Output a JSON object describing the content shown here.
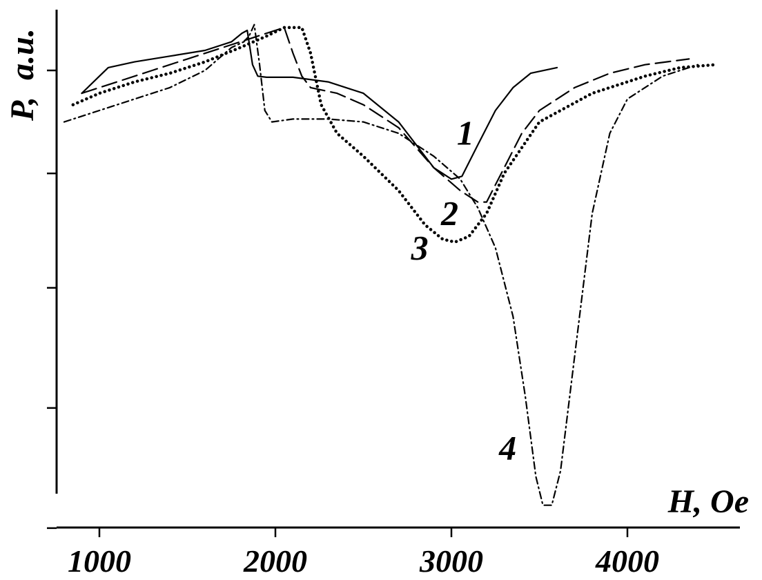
{
  "chart_data": {
    "type": "line",
    "title": "",
    "xlabel": "H, Oe",
    "ylabel": "P,  a.u.",
    "xlim": [
      800,
      4600
    ],
    "ylim": [
      0,
      100
    ],
    "x_ticks": [
      1000,
      2000,
      3000,
      4000
    ],
    "x_tick_labels": [
      "1000",
      "2000",
      "3000",
      "4000"
    ],
    "y_ticks": [
      15,
      36,
      57,
      77,
      95
    ],
    "y_tick_labels": [],
    "grid": false,
    "legend": "none",
    "series": [
      {
        "name": "1",
        "style": "solid",
        "points": [
          [
            900,
            91
          ],
          [
            1000,
            94
          ],
          [
            1050,
            95.5
          ],
          [
            1200,
            96.5
          ],
          [
            1400,
            97.5
          ],
          [
            1600,
            98.5
          ],
          [
            1750,
            100
          ],
          [
            1810,
            101.5
          ],
          [
            1840,
            102
          ],
          [
            1870,
            96
          ],
          [
            1900,
            94
          ],
          [
            1950,
            93.8
          ],
          [
            2100,
            93.8
          ],
          [
            2300,
            93
          ],
          [
            2500,
            91
          ],
          [
            2700,
            86
          ],
          [
            2900,
            78
          ],
          [
            3000,
            76
          ],
          [
            3060,
            76.5
          ],
          [
            3150,
            82
          ],
          [
            3250,
            88
          ],
          [
            3350,
            92
          ],
          [
            3450,
            94.5
          ],
          [
            3600,
            95.5
          ]
        ]
      },
      {
        "name": "2",
        "style": "dashed",
        "points": [
          [
            900,
            91
          ],
          [
            1100,
            93
          ],
          [
            1300,
            95
          ],
          [
            1500,
            97
          ],
          [
            1700,
            99
          ],
          [
            1900,
            101
          ],
          [
            2050,
            102.5
          ],
          [
            2100,
            98
          ],
          [
            2150,
            94
          ],
          [
            2200,
            92
          ],
          [
            2350,
            91
          ],
          [
            2500,
            89
          ],
          [
            2700,
            85
          ],
          [
            2900,
            78
          ],
          [
            3050,
            74
          ],
          [
            3100,
            73
          ],
          [
            3150,
            72
          ],
          [
            3200,
            72
          ],
          [
            3300,
            78
          ],
          [
            3400,
            84
          ],
          [
            3500,
            88
          ],
          [
            3700,
            92
          ],
          [
            3900,
            94.5
          ],
          [
            4100,
            96
          ],
          [
            4350,
            97
          ]
        ]
      },
      {
        "name": "3",
        "style": "dotted",
        "points": [
          [
            850,
            89
          ],
          [
            1000,
            91
          ],
          [
            1200,
            93
          ],
          [
            1400,
            94.5
          ],
          [
            1600,
            96.5
          ],
          [
            1800,
            99
          ],
          [
            1950,
            101
          ],
          [
            2050,
            102.5
          ],
          [
            2150,
            102.5
          ],
          [
            2200,
            98
          ],
          [
            2260,
            89
          ],
          [
            2350,
            84
          ],
          [
            2500,
            80
          ],
          [
            2700,
            74
          ],
          [
            2850,
            68
          ],
          [
            2950,
            65.5
          ],
          [
            3020,
            65
          ],
          [
            3100,
            66
          ],
          [
            3200,
            70
          ],
          [
            3300,
            77
          ],
          [
            3500,
            86
          ],
          [
            3800,
            91
          ],
          [
            4100,
            94
          ],
          [
            4300,
            95.5
          ],
          [
            4500,
            96
          ]
        ]
      },
      {
        "name": "4",
        "style": "dashdot",
        "points": [
          [
            800,
            86
          ],
          [
            1000,
            88
          ],
          [
            1200,
            90
          ],
          [
            1400,
            92
          ],
          [
            1600,
            95
          ],
          [
            1750,
            99
          ],
          [
            1820,
            100
          ],
          [
            1850,
            101
          ],
          [
            1880,
            103
          ],
          [
            1910,
            96
          ],
          [
            1940,
            88
          ],
          [
            1980,
            86
          ],
          [
            2100,
            86.5
          ],
          [
            2300,
            86.5
          ],
          [
            2500,
            86
          ],
          [
            2700,
            84
          ],
          [
            2900,
            80
          ],
          [
            3050,
            76
          ],
          [
            3150,
            71
          ],
          [
            3250,
            64
          ],
          [
            3350,
            52
          ],
          [
            3420,
            38
          ],
          [
            3480,
            24
          ],
          [
            3520,
            19
          ],
          [
            3570,
            19
          ],
          [
            3620,
            25
          ],
          [
            3700,
            45
          ],
          [
            3800,
            70
          ],
          [
            3900,
            84
          ],
          [
            4000,
            90
          ],
          [
            4200,
            94
          ],
          [
            4400,
            96
          ]
        ]
      }
    ],
    "annotations": [
      {
        "text": "1",
        "x": 3080,
        "y": 82
      },
      {
        "text": "2",
        "x": 2990,
        "y": 68
      },
      {
        "text": "3",
        "x": 2820,
        "y": 62
      },
      {
        "text": "4",
        "x": 3320,
        "y": 27
      }
    ]
  }
}
